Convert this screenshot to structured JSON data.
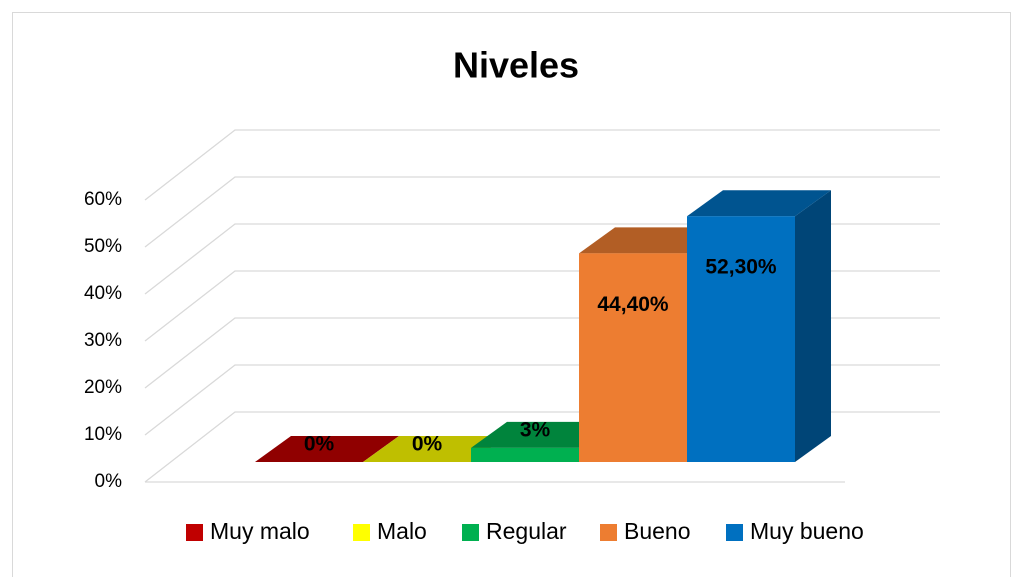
{
  "chart_data": {
    "type": "bar3d",
    "title": "Niveles",
    "categories": [
      "Muy malo",
      "Malo",
      "Regular",
      "Bueno",
      "Muy bueno"
    ],
    "values": [
      0,
      0,
      3,
      44.4,
      52.3
    ],
    "value_labels": [
      "0%",
      "0%",
      "3%",
      "44,40%",
      "52,30%"
    ],
    "colors": [
      "#c00000",
      "#ffff00",
      "#00b050",
      "#ed7d31",
      "#0070c0"
    ],
    "ylim": [
      0,
      60
    ],
    "yticks": [
      {
        "value": 0,
        "label": "0%"
      },
      {
        "value": 10,
        "label": "10%"
      },
      {
        "value": 20,
        "label": "20%"
      },
      {
        "value": 30,
        "label": "30%"
      },
      {
        "value": 40,
        "label": "40%"
      },
      {
        "value": 50,
        "label": "50%"
      },
      {
        "value": 60,
        "label": "60%"
      }
    ],
    "grid": true,
    "legend": "bottom"
  }
}
